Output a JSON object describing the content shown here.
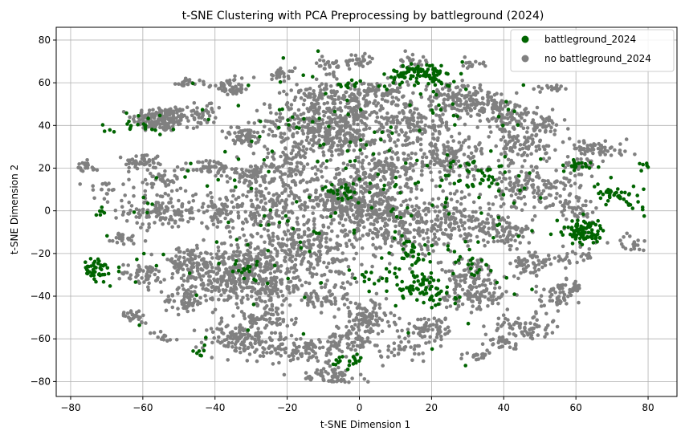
{
  "chart_data": {
    "type": "scatter",
    "title": "t-SNE Clustering with PCA Preprocessing by battleground (2024)",
    "xlabel": "t-SNE Dimension 1",
    "ylabel": "t-SNE Dimension 2",
    "xlim": [
      -84,
      88
    ],
    "ylim": [
      -87,
      86
    ],
    "x_ticks": [
      -80,
      -60,
      -40,
      -20,
      0,
      20,
      40,
      60,
      80
    ],
    "y_ticks": [
      -80,
      -60,
      -40,
      -20,
      0,
      20,
      40,
      60,
      80
    ],
    "x_tick_labels": [
      "−80",
      "−60",
      "−40",
      "−20",
      "0",
      "20",
      "40",
      "60",
      "80"
    ],
    "y_tick_labels": [
      "−80",
      "−60",
      "−40",
      "−20",
      "0",
      "20",
      "40",
      "60",
      "80"
    ],
    "grid": true,
    "legend_position": "top-right",
    "series": [
      {
        "name": "battleground_2024",
        "color": "#006400",
        "clusters": [
          [
            18,
            65,
            4,
            2,
            70
          ],
          [
            12,
            62,
            3,
            2,
            20
          ],
          [
            22,
            60,
            2,
            1.5,
            15
          ],
          [
            -3,
            60,
            2,
            1.5,
            12
          ],
          [
            62,
            -10,
            3,
            3,
            90
          ],
          [
            71,
            8,
            3,
            2,
            35
          ],
          [
            77,
            2,
            1.5,
            2,
            10
          ],
          [
            79,
            21,
            1,
            1,
            6
          ],
          [
            -73,
            -28,
            2,
            3,
            45
          ],
          [
            -72,
            -1,
            1,
            1,
            6
          ],
          [
            18,
            -37,
            4,
            4,
            70
          ],
          [
            15,
            -20,
            3,
            5,
            30
          ],
          [
            34,
            18,
            4,
            4,
            35
          ],
          [
            60,
            21,
            2,
            1.5,
            20
          ],
          [
            -3,
            -70,
            2,
            1.5,
            18
          ],
          [
            -5,
            9,
            3,
            2,
            25
          ],
          [
            -32,
            -28,
            3,
            3,
            15
          ],
          [
            5,
            -30,
            4,
            3,
            20
          ],
          [
            -60,
            40,
            4,
            3,
            20
          ],
          [
            30,
            -25,
            3,
            3,
            15
          ],
          [
            -45,
            -65,
            2,
            2,
            10
          ],
          [
            20,
            5,
            20,
            30,
            120
          ],
          [
            -20,
            10,
            25,
            35,
            110
          ]
        ]
      },
      {
        "name": "no battleground_2024",
        "color": "#808080",
        "clusters": [
          [
            -55,
            43,
            4,
            3,
            170
          ],
          [
            -60,
            23,
            2.5,
            2,
            50
          ],
          [
            -55,
            0,
            5,
            4,
            130
          ],
          [
            -35,
            -30,
            6,
            7,
            330
          ],
          [
            -48,
            -25,
            4,
            4,
            90
          ],
          [
            -33,
            -60,
            5,
            4,
            130
          ],
          [
            -48,
            -42,
            3,
            3,
            55
          ],
          [
            -41,
            20,
            3,
            2,
            55
          ],
          [
            -32,
            35,
            3,
            2,
            55
          ],
          [
            -12,
            42,
            7,
            5,
            220
          ],
          [
            -5,
            33,
            6,
            3,
            130
          ],
          [
            0,
            70,
            2,
            2,
            30
          ],
          [
            -10,
            55,
            5,
            3,
            90
          ],
          [
            5,
            55,
            5,
            3,
            90
          ],
          [
            -5,
            5,
            7,
            6,
            230
          ],
          [
            -15,
            -20,
            8,
            8,
            270
          ],
          [
            -15,
            -65,
            6,
            3,
            110
          ],
          [
            -8,
            -78,
            4,
            2.5,
            80
          ],
          [
            2,
            -50,
            4,
            4,
            100
          ],
          [
            -25,
            0,
            6,
            8,
            160
          ],
          [
            -38,
            0,
            4,
            4,
            70
          ],
          [
            -66,
            -13,
            3,
            2,
            25
          ],
          [
            -76,
            20,
            2,
            1.5,
            20
          ],
          [
            -48,
            60,
            2,
            1,
            20
          ],
          [
            -35,
            58,
            3,
            2,
            50
          ],
          [
            -22,
            64,
            2,
            1.5,
            25
          ],
          [
            -8,
            68,
            2,
            2,
            30
          ],
          [
            15,
            40,
            6,
            5,
            170
          ],
          [
            32,
            50,
            4,
            3,
            90
          ],
          [
            40,
            45,
            4,
            4,
            90
          ],
          [
            50,
            40,
            3,
            3,
            50
          ],
          [
            55,
            58,
            2,
            1,
            20
          ],
          [
            31,
            69,
            2,
            1,
            15
          ],
          [
            45,
            30,
            4,
            4,
            90
          ],
          [
            25,
            25,
            5,
            5,
            130
          ],
          [
            10,
            20,
            5,
            5,
            110
          ],
          [
            5,
            0,
            6,
            6,
            160
          ],
          [
            25,
            -5,
            6,
            6,
            160
          ],
          [
            45,
            10,
            5,
            5,
            110
          ],
          [
            40,
            -10,
            4,
            4,
            90
          ],
          [
            48,
            -25,
            3,
            3,
            55
          ],
          [
            30,
            -30,
            4,
            4,
            90
          ],
          [
            32,
            -40,
            5,
            3,
            90
          ],
          [
            20,
            -55,
            4,
            3,
            70
          ],
          [
            12,
            -65,
            3,
            2,
            30
          ],
          [
            -2,
            -60,
            4,
            3,
            70
          ],
          [
            45,
            -55,
            4,
            3,
            70
          ],
          [
            55,
            -40,
            3,
            4,
            55
          ],
          [
            63,
            30,
            3,
            2,
            35
          ],
          [
            70,
            28,
            3,
            2,
            25
          ],
          [
            60,
            22,
            2,
            2,
            25
          ],
          [
            75,
            -15,
            2,
            2,
            20
          ],
          [
            60,
            -36,
            1,
            2,
            12
          ],
          [
            32,
            -68,
            2,
            1,
            20
          ],
          [
            40,
            -62,
            2,
            2,
            25
          ],
          [
            -25,
            -50,
            4,
            4,
            70
          ],
          [
            -10,
            -40,
            4,
            4,
            70
          ],
          [
            -62,
            -50,
            2,
            2,
            30
          ],
          [
            -60,
            -30,
            3,
            3,
            50
          ],
          [
            -55,
            -60,
            2,
            1.5,
            20
          ],
          [
            -55,
            15,
            3,
            3,
            40
          ],
          [
            -70,
            10,
            3,
            3,
            20
          ],
          [
            10,
            -10,
            6,
            6,
            130
          ],
          [
            -20,
            25,
            5,
            5,
            110
          ],
          [
            0,
            15,
            5,
            5,
            90
          ],
          [
            -30,
            15,
            4,
            4,
            70
          ],
          [
            60,
            0,
            3,
            3,
            40
          ],
          [
            0,
            45,
            5,
            4,
            90
          ],
          [
            25,
            55,
            4,
            3,
            60
          ],
          [
            -25,
            -35,
            5,
            5,
            90
          ],
          [
            -45,
            45,
            3,
            3,
            50
          ],
          [
            15,
            70,
            2,
            3,
            20
          ],
          [
            55,
            10,
            4,
            4,
            50
          ],
          [
            60,
            -20,
            3,
            3,
            25
          ]
        ]
      }
    ]
  }
}
